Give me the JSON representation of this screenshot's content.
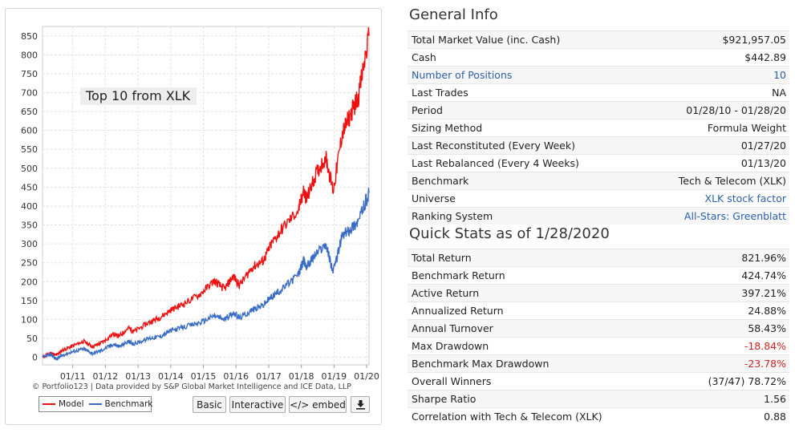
{
  "chart_data": {
    "type": "line",
    "annotation": "Top 10 from XLK",
    "x_ticks": [
      "01/11",
      "01/12",
      "01/13",
      "01/14",
      "01/15",
      "01/16",
      "01/17",
      "01/18",
      "01/19",
      "01/20"
    ],
    "y_ticks": [
      0,
      50,
      100,
      150,
      200,
      250,
      300,
      350,
      400,
      450,
      500,
      550,
      600,
      650,
      700,
      750,
      800,
      850
    ],
    "ylim": [
      -20,
      875
    ],
    "xlim": [
      "2010-01-28",
      "2020-01-28"
    ],
    "grid": true,
    "legend_position": "bottom-left",
    "series": [
      {
        "name": "Model",
        "color": "#ee1111",
        "points": [
          [
            "2010-01-28",
            0
          ],
          [
            "2010-05-01",
            12
          ],
          [
            "2010-07-01",
            5
          ],
          [
            "2010-09-01",
            18
          ],
          [
            "2011-01-01",
            30
          ],
          [
            "2011-05-01",
            42
          ],
          [
            "2011-08-15",
            28
          ],
          [
            "2011-12-01",
            40
          ],
          [
            "2012-04-01",
            62
          ],
          [
            "2012-06-01",
            55
          ],
          [
            "2012-09-15",
            78
          ],
          [
            "2012-11-15",
            68
          ],
          [
            "2013-05-01",
            92
          ],
          [
            "2013-09-01",
            105
          ],
          [
            "2014-01-01",
            125
          ],
          [
            "2014-06-01",
            142
          ],
          [
            "2014-12-01",
            168
          ],
          [
            "2015-05-01",
            202
          ],
          [
            "2015-08-25",
            180
          ],
          [
            "2015-12-01",
            215
          ],
          [
            "2016-02-10",
            190
          ],
          [
            "2016-07-01",
            238
          ],
          [
            "2016-11-01",
            255
          ],
          [
            "2017-02-01",
            300
          ],
          [
            "2017-06-01",
            340
          ],
          [
            "2017-12-01",
            390
          ],
          [
            "2018-01-25",
            440
          ],
          [
            "2018-03-01",
            418
          ],
          [
            "2018-06-01",
            478
          ],
          [
            "2018-10-01",
            530
          ],
          [
            "2018-12-24",
            440
          ],
          [
            "2019-04-01",
            590
          ],
          [
            "2019-07-01",
            640
          ],
          [
            "2019-10-01",
            690
          ],
          [
            "2020-01-28",
            850
          ]
        ]
      },
      {
        "name": "Benchmark",
        "color": "#3b6cc4",
        "points": [
          [
            "2010-01-28",
            0
          ],
          [
            "2010-05-01",
            8
          ],
          [
            "2010-07-01",
            -5
          ],
          [
            "2010-09-01",
            5
          ],
          [
            "2011-01-01",
            15
          ],
          [
            "2011-05-01",
            22
          ],
          [
            "2011-08-15",
            10
          ],
          [
            "2011-12-01",
            20
          ],
          [
            "2012-04-01",
            35
          ],
          [
            "2012-06-01",
            28
          ],
          [
            "2012-09-15",
            42
          ],
          [
            "2012-11-15",
            35
          ],
          [
            "2013-05-01",
            50
          ],
          [
            "2013-09-01",
            55
          ],
          [
            "2014-01-01",
            70
          ],
          [
            "2014-06-01",
            80
          ],
          [
            "2014-12-01",
            92
          ],
          [
            "2015-05-01",
            110
          ],
          [
            "2015-08-25",
            100
          ],
          [
            "2015-12-01",
            118
          ],
          [
            "2016-02-10",
            104
          ],
          [
            "2016-07-01",
            125
          ],
          [
            "2016-11-01",
            138
          ],
          [
            "2017-02-01",
            160
          ],
          [
            "2017-06-01",
            180
          ],
          [
            "2017-12-01",
            220
          ],
          [
            "2018-01-25",
            255
          ],
          [
            "2018-03-01",
            240
          ],
          [
            "2018-06-01",
            270
          ],
          [
            "2018-10-01",
            300
          ],
          [
            "2018-12-24",
            225
          ],
          [
            "2019-04-01",
            320
          ],
          [
            "2019-07-01",
            340
          ],
          [
            "2019-10-01",
            360
          ],
          [
            "2020-01-28",
            435
          ]
        ]
      }
    ]
  },
  "chart_footer": {
    "copyright": "© Portfolio123 | Data provided by S&P Global Market Intelligence and ICE Data, LLP",
    "legend": [
      {
        "label": "Model",
        "color": "#ee1111"
      },
      {
        "label": "Benchmark",
        "color": "#3b6cc4"
      }
    ]
  },
  "buttons": {
    "basic": "Basic",
    "interactive": "Interactive",
    "embed": "</> embed",
    "download_icon": "download-icon"
  },
  "general_info": {
    "title": "General Info",
    "rows": [
      {
        "label": "Total Market Value (inc. Cash)",
        "value": "$921,957.05"
      },
      {
        "label": "Cash",
        "value": "$442.89"
      },
      {
        "label": "Number of Positions",
        "value": "10"
      },
      {
        "label": "Last Trades",
        "value": "NA"
      },
      {
        "label": "Period",
        "value": "01/28/10 - 01/28/20"
      },
      {
        "label": "Sizing Method",
        "value": "Formula Weight"
      },
      {
        "label": "Last Reconstituted (Every Week)",
        "value": "01/27/20"
      },
      {
        "label": "Last Rebalanced (Every 4 Weeks)",
        "value": "01/13/20"
      },
      {
        "label": "Benchmark",
        "value": "Tech & Telecom (XLK)"
      },
      {
        "label": "Universe",
        "value": "XLK stock factor"
      },
      {
        "label": "Ranking System",
        "value": "All-Stars: Greenblatt"
      }
    ]
  },
  "quick_stats": {
    "title": "Quick Stats as of 1/28/2020",
    "rows": [
      {
        "label": "Total Return",
        "value": "821.96%"
      },
      {
        "label": "Benchmark Return",
        "value": "424.74%"
      },
      {
        "label": "Active Return",
        "value": "397.21%"
      },
      {
        "label": "Annualized Return",
        "value": "24.88%"
      },
      {
        "label": "Annual Turnover",
        "value": "58.43%"
      },
      {
        "label": "Max Drawdown",
        "value": "-18.84%"
      },
      {
        "label": "Benchmark Max Drawdown",
        "value": "-23.78%"
      },
      {
        "label": "Overall Winners",
        "value": "(37/47) 78.72%"
      },
      {
        "label": "Sharpe Ratio",
        "value": "1.56"
      },
      {
        "label": "Correlation with Tech & Telecom (XLK)",
        "value": "0.88"
      }
    ]
  },
  "colors": {
    "link": "#2b5fa8",
    "negative": "#cc2222"
  }
}
